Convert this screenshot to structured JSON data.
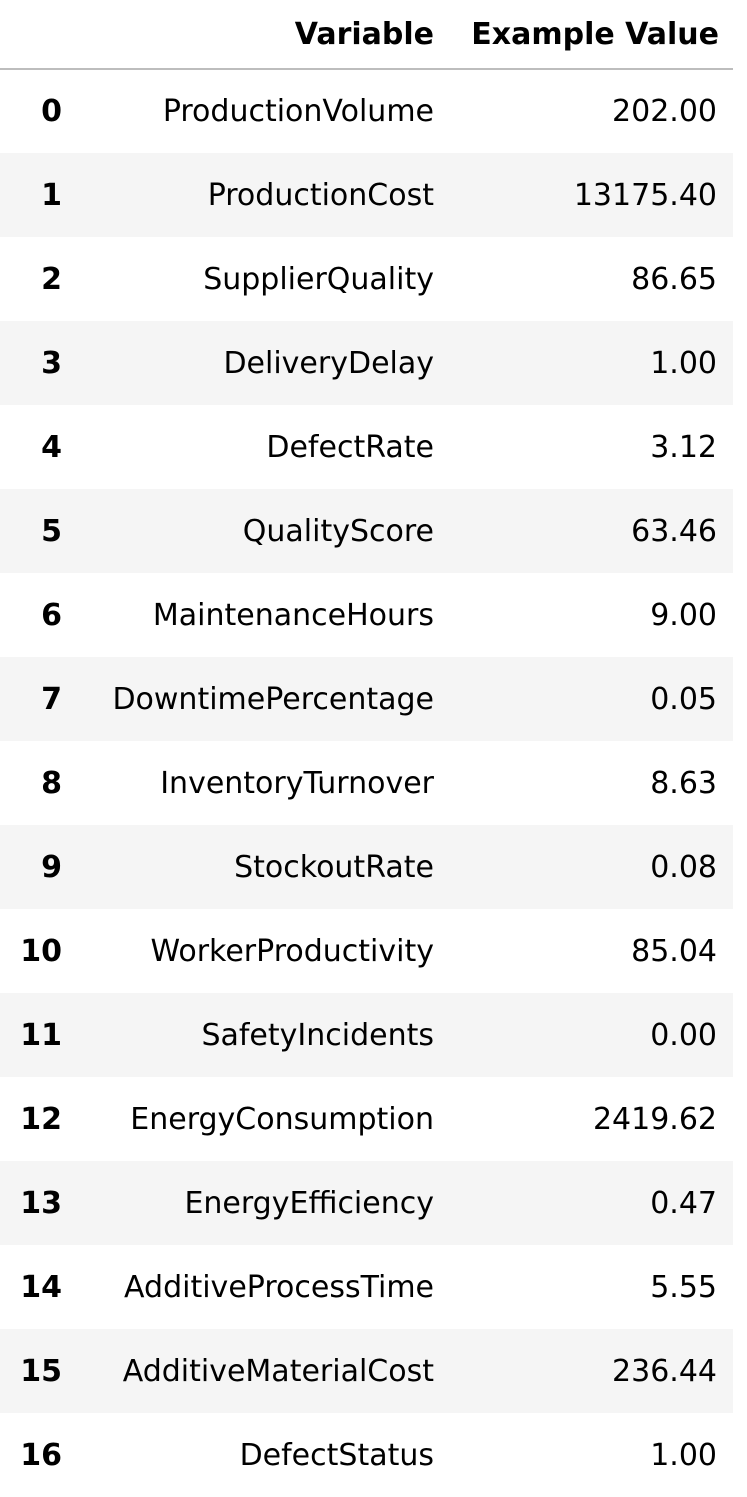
{
  "table": {
    "columns": {
      "index": "",
      "variable": "Variable",
      "value": "Example Value"
    },
    "rows": [
      {
        "index": "0",
        "variable": "ProductionVolume",
        "value": "202.00"
      },
      {
        "index": "1",
        "variable": "ProductionCost",
        "value": "13175.40"
      },
      {
        "index": "2",
        "variable": "SupplierQuality",
        "value": "86.65"
      },
      {
        "index": "3",
        "variable": "DeliveryDelay",
        "value": "1.00"
      },
      {
        "index": "4",
        "variable": "DefectRate",
        "value": "3.12"
      },
      {
        "index": "5",
        "variable": "QualityScore",
        "value": "63.46"
      },
      {
        "index": "6",
        "variable": "MaintenanceHours",
        "value": "9.00"
      },
      {
        "index": "7",
        "variable": "DowntimePercentage",
        "value": "0.05"
      },
      {
        "index": "8",
        "variable": "InventoryTurnover",
        "value": "8.63"
      },
      {
        "index": "9",
        "variable": "StockoutRate",
        "value": "0.08"
      },
      {
        "index": "10",
        "variable": "WorkerProductivity",
        "value": "85.04"
      },
      {
        "index": "11",
        "variable": "SafetyIncidents",
        "value": "0.00"
      },
      {
        "index": "12",
        "variable": "EnergyConsumption",
        "value": "2419.62"
      },
      {
        "index": "13",
        "variable": "EnergyEfficiency",
        "value": "0.47"
      },
      {
        "index": "14",
        "variable": "AdditiveProcessTime",
        "value": "5.55"
      },
      {
        "index": "15",
        "variable": "AdditiveMaterialCost",
        "value": "236.44"
      },
      {
        "index": "16",
        "variable": "DefectStatus",
        "value": "1.00"
      }
    ]
  },
  "colors": {
    "stripe": "#f5f5f5",
    "header_rule": "#bdbdbd"
  }
}
